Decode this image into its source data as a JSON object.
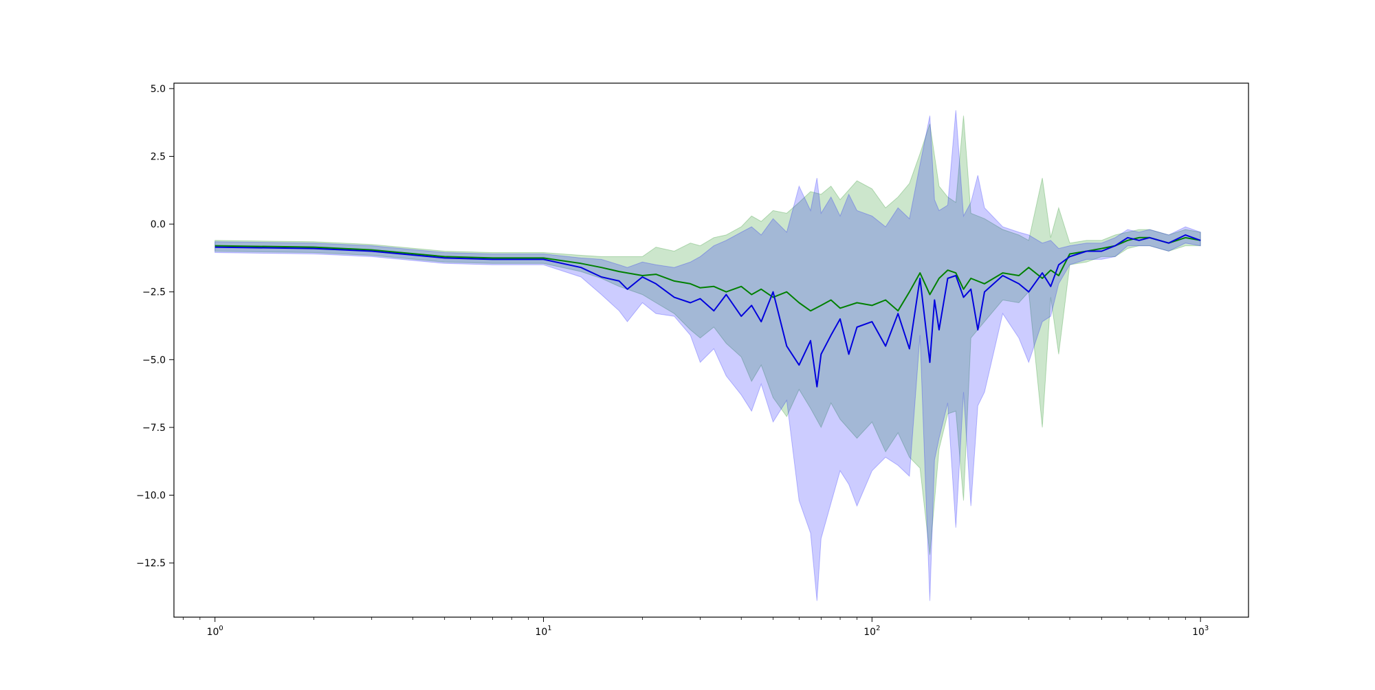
{
  "chart_data": {
    "type": "line",
    "title": "",
    "xlabel": "",
    "ylabel": "",
    "xscale": "log",
    "xlim": [
      0.75,
      1400
    ],
    "ylim": [
      -14.5,
      5.2
    ],
    "grid": false,
    "legend": "none",
    "xticks": [
      {
        "value": 1,
        "base": "10",
        "exp": "0"
      },
      {
        "value": 10,
        "base": "10",
        "exp": "1"
      },
      {
        "value": 100,
        "base": "10",
        "exp": "2"
      },
      {
        "value": 1000,
        "base": "10",
        "exp": "3"
      }
    ],
    "yticks": [
      {
        "value": 5.0,
        "label": "5.0"
      },
      {
        "value": 2.5,
        "label": "2.5"
      },
      {
        "value": 0.0,
        "label": "0.0"
      },
      {
        "value": -2.5,
        "label": "−2.5"
      },
      {
        "value": -5.0,
        "label": "−5.0"
      },
      {
        "value": -7.5,
        "label": "−7.5"
      },
      {
        "value": -10.0,
        "label": "−10.0"
      },
      {
        "value": -12.5,
        "label": "−12.5"
      }
    ],
    "series": [
      {
        "color": "#008000",
        "band_color": "#008000",
        "x": [
          1,
          2,
          3,
          5,
          7,
          10,
          13,
          15,
          17,
          20,
          22,
          25,
          28,
          30,
          33,
          36,
          40,
          43,
          46,
          50,
          55,
          60,
          65,
          70,
          75,
          80,
          90,
          100,
          110,
          120,
          130,
          140,
          150,
          160,
          170,
          180,
          190,
          200,
          220,
          250,
          280,
          300,
          330,
          350,
          370,
          400,
          450,
          500,
          550,
          600,
          650,
          700,
          800,
          900,
          1000
        ],
        "y": [
          -0.8,
          -0.85,
          -0.95,
          -1.2,
          -1.25,
          -1.25,
          -1.45,
          -1.6,
          -1.75,
          -1.9,
          -1.85,
          -2.1,
          -2.2,
          -2.35,
          -2.3,
          -2.5,
          -2.3,
          -2.6,
          -2.4,
          -2.7,
          -2.5,
          -2.9,
          -3.2,
          -3.0,
          -2.8,
          -3.1,
          -2.9,
          -3.0,
          -2.8,
          -3.2,
          -2.5,
          -1.8,
          -2.6,
          -2.0,
          -1.7,
          -1.8,
          -2.4,
          -2.0,
          -2.2,
          -1.8,
          -1.9,
          -1.6,
          -2.0,
          -1.7,
          -1.9,
          -1.1,
          -1.0,
          -0.9,
          -0.8,
          -0.6,
          -0.5,
          -0.5,
          -0.7,
          -0.5,
          -0.6
        ],
        "lower": [
          -1.0,
          -1.05,
          -1.15,
          -1.4,
          -1.45,
          -1.45,
          -1.75,
          -2.0,
          -2.3,
          -2.6,
          -2.9,
          -3.3,
          -3.9,
          -4.2,
          -3.8,
          -4.4,
          -4.9,
          -5.8,
          -5.2,
          -6.4,
          -7.1,
          -6.1,
          -6.8,
          -7.5,
          -6.6,
          -7.2,
          -7.9,
          -7.3,
          -8.4,
          -7.7,
          -8.6,
          -9.0,
          -12.2,
          -8.3,
          -7.0,
          -6.9,
          -10.2,
          -4.2,
          -3.6,
          -2.8,
          -2.9,
          -2.5,
          -7.5,
          -2.7,
          -4.8,
          -1.5,
          -1.4,
          -1.2,
          -1.2,
          -0.9,
          -0.8,
          -0.8,
          -1.0,
          -0.8,
          -0.8
        ],
        "upper": [
          -0.6,
          -0.65,
          -0.75,
          -1.0,
          -1.05,
          -1.05,
          -1.15,
          -1.2,
          -1.2,
          -1.2,
          -0.85,
          -1.0,
          -0.7,
          -0.8,
          -0.5,
          -0.4,
          -0.1,
          0.3,
          0.1,
          0.5,
          0.4,
          0.8,
          1.2,
          1.1,
          1.4,
          0.9,
          1.6,
          1.3,
          0.6,
          1.0,
          1.5,
          2.6,
          3.7,
          1.4,
          1.0,
          0.8,
          4.0,
          0.4,
          0.2,
          -0.2,
          -0.4,
          -0.6,
          1.7,
          -0.5,
          0.6,
          -0.7,
          -0.6,
          -0.6,
          -0.4,
          -0.3,
          -0.2,
          -0.2,
          -0.4,
          -0.2,
          -0.3
        ]
      },
      {
        "color": "#0000dd",
        "band_color": "#0000ff",
        "x": [
          1,
          2,
          3,
          5,
          7,
          10,
          13,
          15,
          17,
          18,
          20,
          22,
          25,
          28,
          30,
          33,
          36,
          40,
          43,
          46,
          50,
          55,
          60,
          65,
          68,
          70,
          75,
          80,
          85,
          90,
          100,
          110,
          120,
          130,
          140,
          150,
          155,
          160,
          170,
          180,
          190,
          200,
          210,
          220,
          250,
          280,
          300,
          330,
          350,
          370,
          400,
          450,
          500,
          550,
          600,
          650,
          700,
          800,
          900,
          1000
        ],
        "y": [
          -0.85,
          -0.9,
          -1.0,
          -1.25,
          -1.3,
          -1.3,
          -1.6,
          -1.95,
          -2.1,
          -2.4,
          -1.95,
          -2.2,
          -2.7,
          -2.9,
          -2.75,
          -3.2,
          -2.6,
          -3.4,
          -3.0,
          -3.6,
          -2.5,
          -4.5,
          -5.2,
          -4.3,
          -6.0,
          -4.8,
          -4.1,
          -3.5,
          -4.8,
          -3.8,
          -3.6,
          -4.5,
          -3.3,
          -4.6,
          -2.0,
          -5.1,
          -2.8,
          -3.9,
          -2.0,
          -1.9,
          -2.7,
          -2.4,
          -3.9,
          -2.5,
          -1.9,
          -2.2,
          -2.5,
          -1.8,
          -2.3,
          -1.5,
          -1.2,
          -1.0,
          -1.0,
          -0.8,
          -0.5,
          -0.6,
          -0.5,
          -0.7,
          -0.4,
          -0.6
        ],
        "lower": [
          -1.05,
          -1.1,
          -1.2,
          -1.45,
          -1.5,
          -1.5,
          -1.95,
          -2.6,
          -3.2,
          -3.6,
          -2.9,
          -3.3,
          -3.4,
          -4.1,
          -5.1,
          -4.6,
          -5.6,
          -6.3,
          -6.9,
          -5.9,
          -7.3,
          -6.5,
          -10.2,
          -11.4,
          -13.9,
          -11.6,
          -10.3,
          -9.1,
          -9.6,
          -10.4,
          -9.1,
          -8.6,
          -8.9,
          -9.3,
          -4.1,
          -13.9,
          -8.7,
          -7.9,
          -6.6,
          -11.2,
          -6.2,
          -10.4,
          -6.7,
          -6.2,
          -3.3,
          -4.2,
          -5.1,
          -3.6,
          -3.4,
          -2.2,
          -1.5,
          -1.3,
          -1.3,
          -1.2,
          -0.8,
          -0.8,
          -0.8,
          -1.0,
          -0.7,
          -0.8
        ],
        "upper": [
          -0.65,
          -0.7,
          -0.8,
          -1.05,
          -1.1,
          -1.1,
          -1.25,
          -1.3,
          -1.5,
          -1.6,
          -1.4,
          -1.5,
          -1.6,
          -1.4,
          -1.2,
          -0.8,
          -0.6,
          -0.3,
          -0.1,
          -0.4,
          0.2,
          -0.3,
          1.4,
          0.5,
          1.7,
          0.4,
          1.0,
          0.3,
          1.1,
          0.5,
          0.3,
          -0.1,
          0.6,
          0.2,
          2.2,
          4.0,
          0.9,
          0.5,
          0.7,
          4.2,
          0.3,
          0.8,
          1.8,
          0.6,
          -0.1,
          -0.3,
          -0.4,
          -0.7,
          -0.6,
          -0.9,
          -0.8,
          -0.7,
          -0.7,
          -0.5,
          -0.2,
          -0.3,
          -0.2,
          -0.4,
          -0.1,
          -0.3
        ]
      }
    ]
  }
}
